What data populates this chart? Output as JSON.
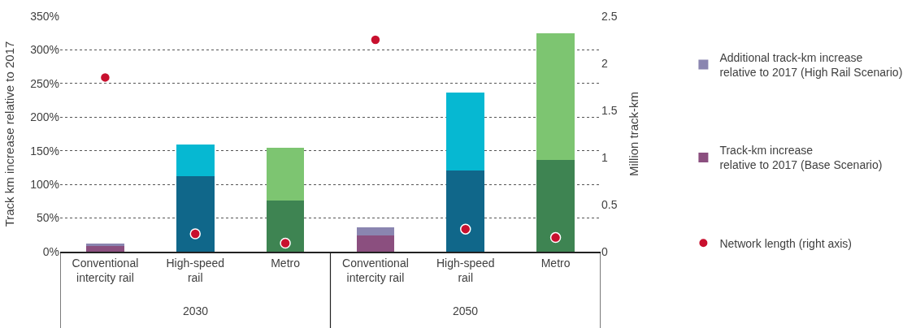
{
  "chart_data": {
    "type": "bar",
    "stacked": true,
    "ylabel": "Track km increase relative to 2017",
    "y2label": "Million track-km",
    "categories": [
      "Conventional\nintercity rail",
      "High-speed\nrail",
      "Metro",
      "Conventional\nintercity rail",
      "High-speed\nrail",
      "Metro"
    ],
    "annotations": [
      "2030",
      "2050"
    ],
    "series": [
      {
        "name": "Track-km increase\nrelative to 2017 (Base Scenario)",
        "colors": [
          "#8b4f7f",
          "#10678a",
          "#3e8452",
          "#8b4f7f",
          "#10678a",
          "#3e8452"
        ],
        "values": [
          8,
          112,
          76,
          24,
          121,
          136
        ]
      },
      {
        "name": "Additional track-km increase\nrelative to 2017 (High Rail Scenario)",
        "colors": [
          "#8a85b0",
          "#06b8d2",
          "#7dc571",
          "#8a85b0",
          "#06b8d2",
          "#7dc571"
        ],
        "values": [
          4,
          47,
          78,
          12,
          116,
          189
        ]
      },
      {
        "name": "Network length (right axis)",
        "type": "scatter",
        "axis": "y2",
        "color": "#c8102e",
        "values": [
          1.85,
          0.19,
          0.09,
          2.25,
          0.24,
          0.15
        ]
      }
    ],
    "ylim": [
      0,
      350
    ],
    "yticks": [
      {
        "value": 0,
        "label": "0%"
      },
      {
        "value": 50,
        "label": "50%"
      },
      {
        "value": 100,
        "label": "100%"
      },
      {
        "value": 150,
        "label": "150%"
      },
      {
        "value": 200,
        "label": "200%"
      },
      {
        "value": 250,
        "label": "250%"
      },
      {
        "value": 300,
        "label": "300%"
      },
      {
        "value": 350,
        "label": "350%"
      }
    ],
    "y2lim": [
      0,
      2.5
    ],
    "y2ticks": [
      0,
      0.5,
      1,
      1.5,
      2,
      2.5
    ],
    "grid": "y",
    "legend": "right",
    "marker": "circle"
  }
}
